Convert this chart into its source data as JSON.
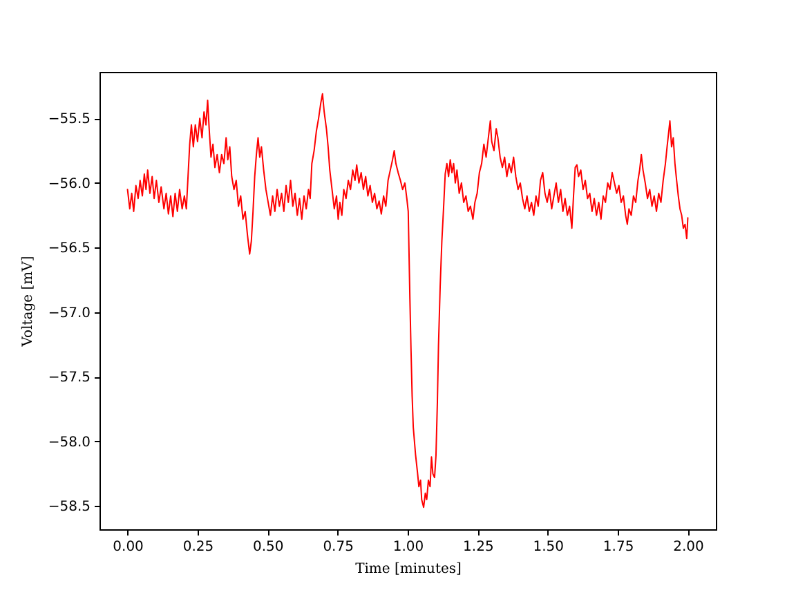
{
  "chart_data": {
    "type": "line",
    "xlabel": "Time [minutes]",
    "ylabel": "Voltage [mV]",
    "x": [
      0.0,
      0.008,
      0.015,
      0.022,
      0.03,
      0.038,
      0.045,
      0.053,
      0.06,
      0.066,
      0.072,
      0.08,
      0.088,
      0.095,
      0.103,
      0.112,
      0.12,
      0.13,
      0.138,
      0.146,
      0.154,
      0.162,
      0.17,
      0.178,
      0.186,
      0.195,
      0.203,
      0.21,
      0.216,
      0.222,
      0.228,
      0.235,
      0.242,
      0.25,
      0.258,
      0.266,
      0.273,
      0.28,
      0.286,
      0.292,
      0.298,
      0.305,
      0.312,
      0.32,
      0.328,
      0.336,
      0.344,
      0.352,
      0.358,
      0.365,
      0.372,
      0.38,
      0.388,
      0.396,
      0.404,
      0.412,
      0.42,
      0.428,
      0.436,
      0.442,
      0.448,
      0.454,
      0.46,
      0.466,
      0.472,
      0.478,
      0.486,
      0.494,
      0.502,
      0.51,
      0.518,
      0.526,
      0.534,
      0.542,
      0.55,
      0.558,
      0.566,
      0.574,
      0.582,
      0.59,
      0.598,
      0.606,
      0.614,
      0.622,
      0.63,
      0.638,
      0.646,
      0.652,
      0.658,
      0.666,
      0.674,
      0.682,
      0.69,
      0.696,
      0.702,
      0.71,
      0.716,
      0.722,
      0.73,
      0.738,
      0.746,
      0.752,
      0.758,
      0.765,
      0.772,
      0.78,
      0.788,
      0.796,
      0.804,
      0.812,
      0.818,
      0.826,
      0.834,
      0.842,
      0.85,
      0.858,
      0.866,
      0.874,
      0.882,
      0.89,
      0.898,
      0.906,
      0.914,
      0.922,
      0.93,
      0.938,
      0.946,
      0.952,
      0.958,
      0.966,
      0.974,
      0.982,
      0.99,
      0.997,
      1.002,
      1.004,
      1.008,
      1.012,
      1.016,
      1.02,
      1.028,
      1.035,
      1.04,
      1.046,
      1.05,
      1.057,
      1.063,
      1.068,
      1.074,
      1.08,
      1.085,
      1.09,
      1.096,
      1.101,
      1.106,
      1.11,
      1.116,
      1.122,
      1.128,
      1.134,
      1.14,
      1.146,
      1.152,
      1.158,
      1.164,
      1.17,
      1.176,
      1.184,
      1.192,
      1.2,
      1.208,
      1.216,
      1.224,
      1.233,
      1.24,
      1.248,
      1.256,
      1.264,
      1.272,
      1.28,
      1.288,
      1.295,
      1.3,
      1.308,
      1.316,
      1.322,
      1.33,
      1.338,
      1.346,
      1.354,
      1.362,
      1.37,
      1.378,
      1.386,
      1.394,
      1.402,
      1.41,
      1.418,
      1.426,
      1.434,
      1.442,
      1.45,
      1.458,
      1.466,
      1.474,
      1.482,
      1.49,
      1.498,
      1.506,
      1.514,
      1.522,
      1.53,
      1.538,
      1.546,
      1.554,
      1.562,
      1.57,
      1.578,
      1.586,
      1.592,
      1.598,
      1.604,
      1.61,
      1.618,
      1.626,
      1.634,
      1.642,
      1.65,
      1.658,
      1.666,
      1.674,
      1.682,
      1.69,
      1.698,
      1.706,
      1.714,
      1.722,
      1.73,
      1.738,
      1.746,
      1.754,
      1.762,
      1.77,
      1.778,
      1.784,
      1.79,
      1.798,
      1.806,
      1.814,
      1.822,
      1.828,
      1.834,
      1.84,
      1.848,
      1.856,
      1.864,
      1.872,
      1.88,
      1.888,
      1.896,
      1.904,
      1.912,
      1.92,
      1.926,
      1.932,
      1.936,
      1.942,
      1.948,
      1.954,
      1.96,
      1.966,
      1.972,
      1.978,
      1.984,
      1.99,
      1.996,
      2.0
    ],
    "series": [
      {
        "color": "#ff0000",
        "values": [
          -56.05,
          -56.2,
          -56.08,
          -56.22,
          -56.02,
          -56.12,
          -55.98,
          -56.1,
          -55.93,
          -56.05,
          -55.9,
          -56.08,
          -55.95,
          -56.12,
          -55.98,
          -56.15,
          -56.03,
          -56.2,
          -56.08,
          -56.24,
          -56.1,
          -56.26,
          -56.08,
          -56.22,
          -56.05,
          -56.2,
          -56.1,
          -56.2,
          -55.95,
          -55.7,
          -55.55,
          -55.72,
          -55.55,
          -55.68,
          -55.5,
          -55.65,
          -55.45,
          -55.55,
          -55.36,
          -55.6,
          -55.8,
          -55.7,
          -55.88,
          -55.78,
          -55.92,
          -55.78,
          -55.85,
          -55.65,
          -55.82,
          -55.72,
          -55.95,
          -56.05,
          -55.98,
          -56.18,
          -56.1,
          -56.28,
          -56.22,
          -56.4,
          -56.55,
          -56.45,
          -56.22,
          -55.95,
          -55.78,
          -55.65,
          -55.8,
          -55.72,
          -55.9,
          -56.05,
          -56.15,
          -56.25,
          -56.1,
          -56.22,
          -56.05,
          -56.18,
          -56.08,
          -56.22,
          -56.02,
          -56.15,
          -55.98,
          -56.18,
          -56.08,
          -56.25,
          -56.12,
          -56.28,
          -56.1,
          -56.2,
          -56.05,
          -56.12,
          -55.85,
          -55.75,
          -55.6,
          -55.5,
          -55.38,
          -55.31,
          -55.45,
          -55.58,
          -55.72,
          -55.9,
          -56.05,
          -56.2,
          -56.1,
          -56.28,
          -56.15,
          -56.25,
          -56.05,
          -56.12,
          -55.98,
          -56.05,
          -55.9,
          -55.98,
          -55.86,
          -56.0,
          -55.92,
          -56.05,
          -55.95,
          -56.1,
          -56.02,
          -56.15,
          -56.08,
          -56.2,
          -56.14,
          -56.24,
          -56.1,
          -56.18,
          -55.98,
          -55.9,
          -55.82,
          -55.75,
          -55.85,
          -55.92,
          -55.98,
          -56.05,
          -56.0,
          -56.12,
          -56.22,
          -56.45,
          -56.9,
          -57.3,
          -57.65,
          -57.89,
          -58.1,
          -58.24,
          -58.35,
          -58.3,
          -58.45,
          -58.51,
          -58.4,
          -58.45,
          -58.3,
          -58.35,
          -58.12,
          -58.25,
          -58.28,
          -58.11,
          -57.7,
          -57.26,
          -56.8,
          -56.45,
          -56.2,
          -55.93,
          -55.85,
          -55.95,
          -55.82,
          -55.92,
          -55.85,
          -56.0,
          -55.9,
          -56.08,
          -56.0,
          -56.15,
          -56.1,
          -56.22,
          -56.18,
          -56.28,
          -56.15,
          -56.08,
          -55.92,
          -55.85,
          -55.7,
          -55.8,
          -55.65,
          -55.52,
          -55.68,
          -55.75,
          -55.58,
          -55.65,
          -55.8,
          -55.88,
          -55.8,
          -55.95,
          -55.85,
          -55.92,
          -55.8,
          -55.95,
          -56.05,
          -56.0,
          -56.12,
          -56.2,
          -56.1,
          -56.22,
          -56.15,
          -56.25,
          -56.1,
          -56.18,
          -55.98,
          -55.92,
          -56.08,
          -56.15,
          -56.05,
          -56.2,
          -56.1,
          -56.0,
          -56.15,
          -56.05,
          -56.22,
          -56.12,
          -56.25,
          -56.18,
          -56.35,
          -56.1,
          -55.88,
          -55.86,
          -55.95,
          -55.9,
          -56.05,
          -55.98,
          -56.12,
          -56.08,
          -56.22,
          -56.12,
          -56.25,
          -56.15,
          -56.28,
          -56.1,
          -56.15,
          -56.0,
          -56.05,
          -55.92,
          -56.0,
          -56.08,
          -56.02,
          -56.15,
          -56.1,
          -56.25,
          -56.32,
          -56.2,
          -56.25,
          -56.1,
          -56.15,
          -55.98,
          -55.9,
          -55.78,
          -55.9,
          -56.0,
          -56.12,
          -56.05,
          -56.18,
          -56.1,
          -56.22,
          -56.08,
          -56.15,
          -55.98,
          -55.85,
          -55.72,
          -55.6,
          -55.52,
          -55.72,
          -55.65,
          -55.85,
          -55.98,
          -56.1,
          -56.2,
          -56.25,
          -56.35,
          -56.32,
          -56.43,
          -56.27
        ]
      }
    ],
    "xlim": [
      -0.1,
      2.1
    ],
    "ylim": [
      -58.68,
      -55.14
    ],
    "xticks": [
      {
        "value": 0,
        "label": "0.00"
      },
      {
        "value": 0.25,
        "label": "0.25"
      },
      {
        "value": 0.5,
        "label": "0.50"
      },
      {
        "value": 0.75,
        "label": "0.75"
      },
      {
        "value": 1,
        "label": "1.00"
      },
      {
        "value": 1.25,
        "label": "1.25"
      },
      {
        "value": 1.5,
        "label": "1.50"
      },
      {
        "value": 1.75,
        "label": "1.75"
      },
      {
        "value": 2,
        "label": "2.00"
      }
    ],
    "yticks": [
      {
        "value": -58.5,
        "label": "−58.5"
      },
      {
        "value": -58.0,
        "label": "−58.0"
      },
      {
        "value": -57.5,
        "label": "−57.5"
      },
      {
        "value": -57.0,
        "label": "−57.0"
      },
      {
        "value": -56.5,
        "label": "−56.5"
      },
      {
        "value": -56.0,
        "label": "−56.0"
      },
      {
        "value": -55.5,
        "label": "−55.5"
      }
    ],
    "grid": false,
    "legend": false,
    "marker": "none",
    "line_style": "solid"
  }
}
